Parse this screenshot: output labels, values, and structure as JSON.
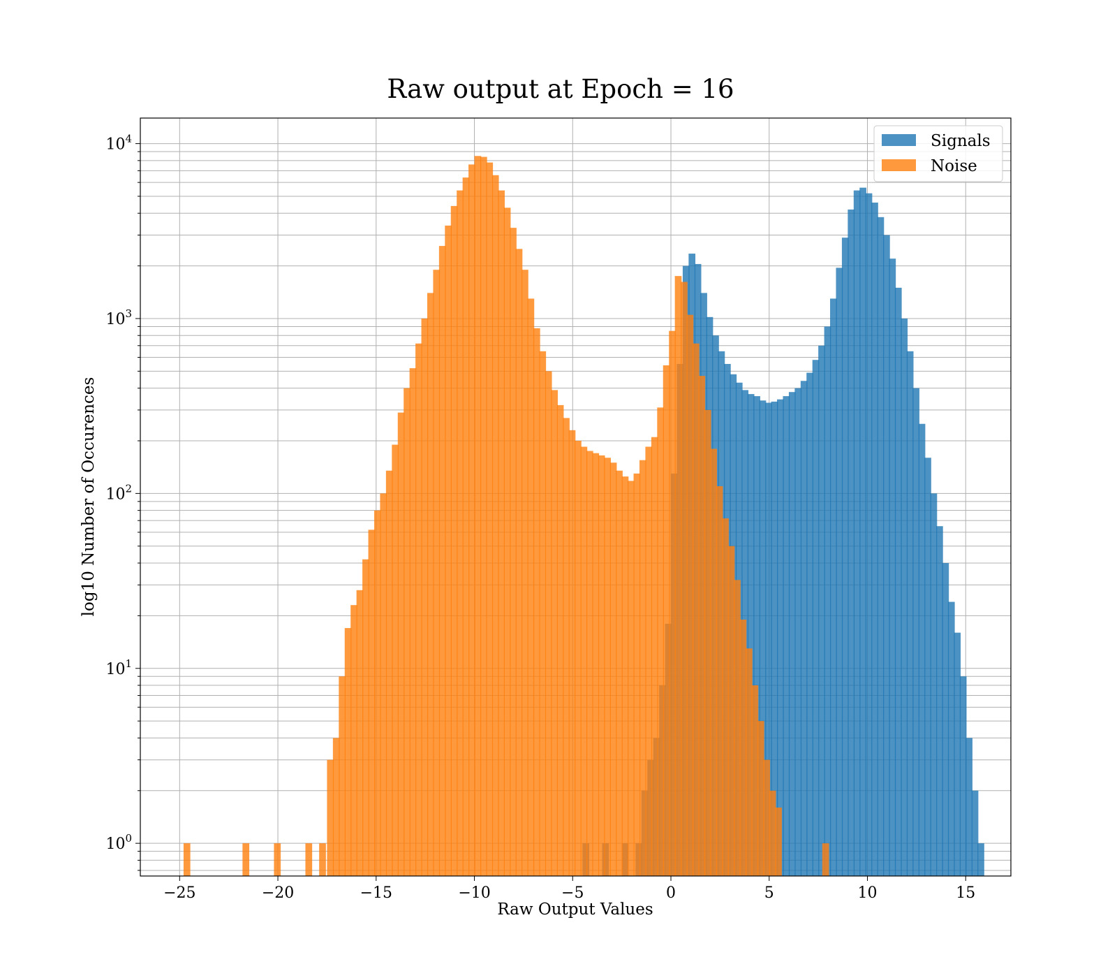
{
  "chart_data": {
    "type": "histogram",
    "title": "Raw output at Epoch = 16",
    "xlabel": "Raw Output Values",
    "ylabel": "log10 Number of Occurences",
    "xlim": [
      -27,
      17.3
    ],
    "ylim": [
      0.65,
      14000
    ],
    "yscale": "log",
    "grid": true,
    "legend": "top-right",
    "xticks": [
      -25,
      -20,
      -15,
      -10,
      -5,
      0,
      5,
      10,
      15
    ],
    "xtick_labels": [
      "−25",
      "−20",
      "−15",
      "−10",
      "−5",
      "0",
      "5",
      "10",
      "15"
    ],
    "yticks": [
      1,
      10,
      100,
      1000,
      10000
    ],
    "ytick_labels": [
      {
        "base": "10",
        "exp": "0"
      },
      {
        "base": "10",
        "exp": "1"
      },
      {
        "base": "10",
        "exp": "2"
      },
      {
        "base": "10",
        "exp": "3"
      },
      {
        "base": "10",
        "exp": "4"
      }
    ],
    "bin_width": 0.33,
    "series": [
      {
        "name": "Signals",
        "color": "#1f77b4",
        "opacity": 0.8,
        "bins": [
          [
            -4.5,
            1
          ],
          [
            -3.5,
            1
          ],
          [
            -2.5,
            1
          ],
          [
            -1.8,
            1
          ],
          [
            -1.5,
            2
          ],
          [
            -1.2,
            3
          ],
          [
            -0.9,
            4
          ],
          [
            -0.6,
            8
          ],
          [
            -0.3,
            18
          ],
          [
            0.0,
            130
          ],
          [
            0.3,
            550
          ],
          [
            0.6,
            2000
          ],
          [
            0.9,
            2350
          ],
          [
            1.2,
            2050
          ],
          [
            1.5,
            1400
          ],
          [
            1.8,
            1020
          ],
          [
            2.1,
            800
          ],
          [
            2.4,
            650
          ],
          [
            2.7,
            550
          ],
          [
            3.0,
            480
          ],
          [
            3.3,
            430
          ],
          [
            3.6,
            390
          ],
          [
            3.9,
            370
          ],
          [
            4.2,
            360
          ],
          [
            4.5,
            340
          ],
          [
            4.8,
            330
          ],
          [
            5.1,
            335
          ],
          [
            5.4,
            345
          ],
          [
            5.7,
            360
          ],
          [
            6.0,
            380
          ],
          [
            6.3,
            400
          ],
          [
            6.6,
            440
          ],
          [
            6.9,
            490
          ],
          [
            7.2,
            580
          ],
          [
            7.5,
            700
          ],
          [
            7.8,
            900
          ],
          [
            8.1,
            1300
          ],
          [
            8.4,
            1950
          ],
          [
            8.7,
            2900
          ],
          [
            9.0,
            4200
          ],
          [
            9.3,
            5400
          ],
          [
            9.6,
            5600
          ],
          [
            9.9,
            5200
          ],
          [
            10.2,
            4600
          ],
          [
            10.5,
            3800
          ],
          [
            10.8,
            3000
          ],
          [
            11.1,
            2200
          ],
          [
            11.4,
            1500
          ],
          [
            11.7,
            1000
          ],
          [
            12.0,
            650
          ],
          [
            12.3,
            400
          ],
          [
            12.6,
            250
          ],
          [
            12.9,
            160
          ],
          [
            13.2,
            100
          ],
          [
            13.5,
            65
          ],
          [
            13.8,
            40
          ],
          [
            14.1,
            24
          ],
          [
            14.4,
            16
          ],
          [
            14.7,
            9
          ],
          [
            15.0,
            4
          ],
          [
            15.3,
            2
          ],
          [
            15.6,
            1
          ]
        ]
      },
      {
        "name": "Noise",
        "color": "#ff7f0e",
        "opacity": 0.8,
        "bins": [
          [
            -24.8,
            1
          ],
          [
            -21.8,
            1
          ],
          [
            -20.2,
            1
          ],
          [
            -18.6,
            1
          ],
          [
            -17.9,
            1
          ],
          [
            -17.5,
            3
          ],
          [
            -17.2,
            4
          ],
          [
            -16.9,
            9
          ],
          [
            -16.6,
            17
          ],
          [
            -16.3,
            23
          ],
          [
            -16.0,
            28
          ],
          [
            -15.7,
            42
          ],
          [
            -15.4,
            62
          ],
          [
            -15.1,
            80
          ],
          [
            -14.8,
            100
          ],
          [
            -14.5,
            135
          ],
          [
            -14.2,
            190
          ],
          [
            -13.9,
            290
          ],
          [
            -13.6,
            400
          ],
          [
            -13.3,
            520
          ],
          [
            -13.0,
            720
          ],
          [
            -12.7,
            1000
          ],
          [
            -12.4,
            1400
          ],
          [
            -12.1,
            1900
          ],
          [
            -11.8,
            2600
          ],
          [
            -11.5,
            3400
          ],
          [
            -11.2,
            4400
          ],
          [
            -10.9,
            5400
          ],
          [
            -10.6,
            6400
          ],
          [
            -10.3,
            7600
          ],
          [
            -10.0,
            8500
          ],
          [
            -9.7,
            8400
          ],
          [
            -9.4,
            7800
          ],
          [
            -9.1,
            6600
          ],
          [
            -8.8,
            5400
          ],
          [
            -8.5,
            4300
          ],
          [
            -8.2,
            3300
          ],
          [
            -7.9,
            2500
          ],
          [
            -7.6,
            1900
          ],
          [
            -7.3,
            1300
          ],
          [
            -7.0,
            880
          ],
          [
            -6.7,
            650
          ],
          [
            -6.4,
            500
          ],
          [
            -6.1,
            390
          ],
          [
            -5.8,
            320
          ],
          [
            -5.5,
            270
          ],
          [
            -5.2,
            230
          ],
          [
            -4.9,
            200
          ],
          [
            -4.6,
            185
          ],
          [
            -4.3,
            175
          ],
          [
            -4.0,
            170
          ],
          [
            -3.7,
            165
          ],
          [
            -3.4,
            160
          ],
          [
            -3.1,
            150
          ],
          [
            -2.8,
            135
          ],
          [
            -2.5,
            125
          ],
          [
            -2.2,
            118
          ],
          [
            -1.9,
            130
          ],
          [
            -1.6,
            155
          ],
          [
            -1.3,
            185
          ],
          [
            -1.0,
            210
          ],
          [
            -0.7,
            310
          ],
          [
            -0.4,
            540
          ],
          [
            -0.1,
            850
          ],
          [
            0.2,
            1750
          ],
          [
            0.5,
            1620
          ],
          [
            0.8,
            1050
          ],
          [
            1.1,
            720
          ],
          [
            1.4,
            470
          ],
          [
            1.7,
            300
          ],
          [
            2.0,
            180
          ],
          [
            2.3,
            110
          ],
          [
            2.6,
            72
          ],
          [
            2.9,
            50
          ],
          [
            3.2,
            32
          ],
          [
            3.5,
            19
          ],
          [
            3.8,
            13
          ],
          [
            4.1,
            8
          ],
          [
            4.4,
            5
          ],
          [
            4.7,
            3
          ],
          [
            5.0,
            2
          ],
          [
            5.3,
            1.6
          ],
          [
            7.7,
            1
          ]
        ]
      }
    ]
  }
}
